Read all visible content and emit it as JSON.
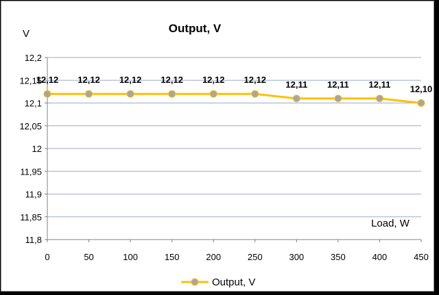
{
  "chart_data": {
    "type": "line",
    "title": "Output, V",
    "ylabel": "V",
    "xlabel": "Load, W",
    "x": [
      0,
      50,
      100,
      150,
      200,
      250,
      300,
      350,
      400,
      450
    ],
    "x_tick_labels": [
      "0",
      "50",
      "100",
      "150",
      "200",
      "250",
      "300",
      "350",
      "400",
      "450"
    ],
    "y_tick_labels": [
      "11,8",
      "11,85",
      "11,9",
      "11,95",
      "12",
      "12,05",
      "12,1",
      "12,15",
      "12,2"
    ],
    "ylim": [
      11.8,
      12.2
    ],
    "grid": true,
    "legend_position": "bottom",
    "series": [
      {
        "name": "Output, V",
        "values": [
          12.12,
          12.12,
          12.12,
          12.12,
          12.12,
          12.12,
          12.11,
          12.11,
          12.11,
          12.1
        ],
        "data_labels": [
          "12,12",
          "12,12",
          "12,12",
          "12,12",
          "12,12",
          "12,12",
          "12,11",
          "12,11",
          "12,11",
          "12,10"
        ]
      }
    ],
    "colors": {
      "line": "#ffc000",
      "marker": "#a6a6a6",
      "grid": "#9dabc8"
    }
  }
}
